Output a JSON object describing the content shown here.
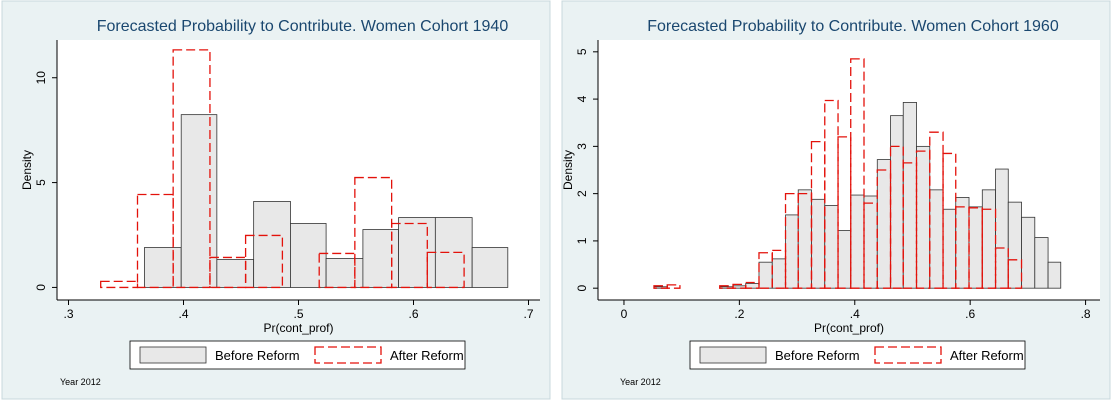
{
  "chart_data": [
    {
      "type": "histogram",
      "title": "Forecasted Probability to Contribute. Women Cohort 1940",
      "x_label": "Pr(cont_prof)",
      "y_label": "Density",
      "note": "Year 2012",
      "xlim": [
        0.29,
        0.71
      ],
      "ylim": [
        -0.6,
        11.8
      ],
      "xticks": [
        {
          "value": 0.3,
          "label": ".3"
        },
        {
          "value": 0.4,
          "label": ".4"
        },
        {
          "value": 0.5,
          "label": ".5"
        },
        {
          "value": 0.6,
          "label": ".6"
        },
        {
          "value": 0.7,
          "label": ".7"
        }
      ],
      "yticks": [
        0,
        5,
        10
      ],
      "series": [
        {
          "name": "Before Reform",
          "color": "#e8e8e8",
          "edge_color": "#333333",
          "dashed": false,
          "bins": [
            0.366,
            0.398,
            0.429,
            0.461,
            0.493,
            0.524,
            0.556,
            0.587,
            0.619,
            0.651,
            0.682
          ],
          "values": [
            1.9,
            8.24,
            1.33,
            4.1,
            3.05,
            1.38,
            2.76,
            3.33,
            3.33,
            1.9
          ]
        },
        {
          "name": "After Reform",
          "color": "none",
          "edge_color": "#e3120b",
          "dashed": true,
          "bins": [
            0.328,
            0.36,
            0.391,
            0.423,
            0.454,
            0.486,
            0.518,
            0.549,
            0.581,
            0.612,
            0.644
          ],
          "values": [
            0.29,
            4.43,
            11.33,
            1.43,
            2.48,
            0,
            1.62,
            5.24,
            3.05,
            1.67
          ]
        }
      ]
    },
    {
      "type": "histogram",
      "title": "Forecasted Probability to Contribute. Women Cohort 1960",
      "x_label": "Pr(cont_prof)",
      "y_label": "Density",
      "note": "Year 2012",
      "xlim": [
        -0.045,
        0.825
      ],
      "ylim": [
        -0.25,
        5.25
      ],
      "xticks": [
        0,
        {
          "value": 0.2,
          "label": ".2"
        },
        {
          "value": 0.4,
          "label": ".4"
        },
        {
          "value": 0.6,
          "label": ".6"
        },
        {
          "value": 0.8,
          "label": ".8"
        }
      ],
      "yticks": [
        0,
        1,
        2,
        3,
        4,
        5
      ],
      "series": [
        {
          "name": "Before Reform",
          "color": "#e8e8e8",
          "edge_color": "#333333",
          "dashed": false,
          "bins": [
            0.052,
            0.075,
            0.097,
            0.12,
            0.143,
            0.166,
            0.189,
            0.211,
            0.234,
            0.257,
            0.28,
            0.302,
            0.325,
            0.348,
            0.371,
            0.393,
            0.416,
            0.439,
            0.462,
            0.484,
            0.507,
            0.53,
            0.553,
            0.575,
            0.598,
            0.621,
            0.644,
            0.666,
            0.689,
            0.712,
            0.735,
            0.757
          ],
          "values": [
            0.03,
            0,
            0,
            0,
            0,
            0.03,
            0.05,
            0.1,
            0.55,
            0.62,
            1.55,
            2.08,
            1.88,
            1.75,
            1.22,
            1.97,
            1.95,
            2.72,
            3.65,
            3.93,
            3.0,
            2.08,
            1.67,
            1.92,
            1.72,
            2.08,
            2.52,
            1.82,
            1.5,
            1.07,
            0.55
          ]
        },
        {
          "name": "After Reform",
          "color": "none",
          "edge_color": "#e3120b",
          "dashed": true,
          "bins": [
            0.052,
            0.075,
            0.097,
            0.12,
            0.143,
            0.166,
            0.189,
            0.211,
            0.234,
            0.257,
            0.28,
            0.302,
            0.325,
            0.348,
            0.371,
            0.393,
            0.416,
            0.439,
            0.462,
            0.484,
            0.507,
            0.53,
            0.553,
            0.575,
            0.598,
            0.621,
            0.644,
            0.666,
            0.689
          ],
          "values": [
            0.05,
            0.07,
            0,
            0,
            0,
            0.05,
            0.08,
            0.12,
            0.75,
            0.8,
            2.0,
            2.0,
            3.1,
            3.97,
            3.2,
            4.85,
            1.8,
            2.5,
            3.0,
            2.65,
            2.9,
            3.3,
            2.85,
            1.72,
            1.7,
            1.67,
            0.85,
            0.6
          ]
        }
      ]
    }
  ]
}
